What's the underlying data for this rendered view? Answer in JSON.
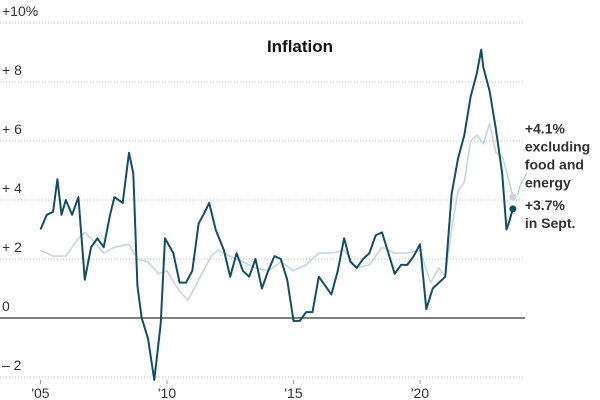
{
  "chart_data": {
    "type": "line",
    "title": "Inflation",
    "xlim": [
      2003.4,
      2024.15
    ],
    "ylim": [
      -2.5,
      10.5
    ],
    "xticks": [
      {
        "value": 2005,
        "label": "'05"
      },
      {
        "value": 2010,
        "label": "'10"
      },
      {
        "value": 2015,
        "label": "'15"
      },
      {
        "value": 2020,
        "label": "'20"
      }
    ],
    "yticks": [
      {
        "value": -2,
        "label": "– 2"
      },
      0,
      {
        "value": 2,
        "label": "+ 2"
      },
      {
        "value": 4,
        "label": "+ 4"
      },
      {
        "value": 6,
        "label": "+ 6"
      },
      {
        "value": 8,
        "label": "+ 8"
      },
      {
        "value": 10,
        "label": "+10%"
      }
    ],
    "grid": true,
    "series": [
      {
        "name": "excluding food and energy",
        "color": "#c5d4e6",
        "label_color": "#a9bfd9",
        "x": [
          2005.0,
          2005.5,
          2006.0,
          2006.5,
          2006.75,
          2007.0,
          2007.5,
          2007.92,
          2008.5,
          2008.83,
          2009.25,
          2009.67,
          2010.0,
          2010.5,
          2010.83,
          2011.25,
          2011.75,
          2012.0,
          2012.5,
          2013.0,
          2013.5,
          2014.0,
          2014.5,
          2015.0,
          2015.5,
          2016.0,
          2016.5,
          2017.0,
          2017.5,
          2018.0,
          2018.5,
          2019.0,
          2019.5,
          2020.0,
          2020.42,
          2020.75,
          2021.0,
          2021.25,
          2021.5,
          2021.75,
          2022.0,
          2022.25,
          2022.5,
          2022.75,
          2023.0,
          2023.25,
          2023.5,
          2023.67
        ],
        "values": [
          2.3,
          2.1,
          2.1,
          2.7,
          2.9,
          2.7,
          2.2,
          2.4,
          2.5,
          2.0,
          1.9,
          1.5,
          1.6,
          0.9,
          0.6,
          1.3,
          2.1,
          2.3,
          2.1,
          1.9,
          1.7,
          1.6,
          1.9,
          1.6,
          1.8,
          2.2,
          2.2,
          2.3,
          1.7,
          1.8,
          2.4,
          2.2,
          2.2,
          2.3,
          1.2,
          1.7,
          1.4,
          3.0,
          4.3,
          4.6,
          6.0,
          6.2,
          5.9,
          6.6,
          5.6,
          5.5,
          4.7,
          4.1
        ],
        "annotation": [
          "+4.1%",
          "excluding",
          "food and",
          "energy"
        ]
      },
      {
        "name": "in Sept.",
        "color": "#134e63",
        "label_color": "#111111",
        "x": [
          2005.0,
          2005.25,
          2005.5,
          2005.67,
          2005.83,
          2006.0,
          2006.25,
          2006.5,
          2006.75,
          2007.0,
          2007.25,
          2007.5,
          2007.75,
          2007.92,
          2008.25,
          2008.5,
          2008.67,
          2008.83,
          2009.0,
          2009.25,
          2009.5,
          2009.75,
          2009.92,
          2010.25,
          2010.5,
          2010.75,
          2011.0,
          2011.25,
          2011.5,
          2011.67,
          2011.92,
          2012.25,
          2012.5,
          2012.75,
          2013.0,
          2013.25,
          2013.5,
          2013.75,
          2014.0,
          2014.25,
          2014.5,
          2014.75,
          2015.0,
          2015.25,
          2015.5,
          2015.75,
          2016.0,
          2016.25,
          2016.5,
          2016.75,
          2017.0,
          2017.25,
          2017.5,
          2017.75,
          2018.0,
          2018.25,
          2018.5,
          2018.75,
          2019.0,
          2019.25,
          2019.5,
          2019.75,
          2020.0,
          2020.25,
          2020.5,
          2020.75,
          2021.0,
          2021.25,
          2021.5,
          2021.75,
          2022.0,
          2022.25,
          2022.42,
          2022.5,
          2022.75,
          2023.0,
          2023.25,
          2023.42,
          2023.5,
          2023.67
        ],
        "values": [
          3.0,
          3.5,
          3.6,
          4.7,
          3.5,
          4.0,
          3.5,
          4.1,
          1.3,
          2.4,
          2.7,
          2.4,
          3.5,
          4.1,
          3.9,
          5.6,
          4.9,
          1.1,
          0.0,
          -0.7,
          -2.1,
          -0.2,
          2.7,
          2.2,
          1.2,
          1.2,
          1.6,
          3.2,
          3.6,
          3.9,
          3.0,
          2.3,
          1.4,
          2.2,
          1.6,
          1.4,
          2.0,
          1.0,
          1.6,
          2.1,
          2.0,
          1.3,
          -0.1,
          -0.1,
          0.2,
          0.2,
          1.4,
          1.1,
          0.8,
          1.6,
          2.7,
          1.9,
          1.7,
          2.0,
          2.2,
          2.8,
          2.9,
          2.2,
          1.5,
          1.8,
          1.8,
          2.1,
          2.5,
          0.3,
          1.0,
          1.2,
          1.4,
          4.2,
          5.4,
          6.2,
          7.5,
          8.3,
          9.1,
          8.5,
          7.7,
          6.4,
          4.9,
          3.0,
          3.2,
          3.7
        ],
        "annotation": [
          "+3.7%",
          "in Sept."
        ]
      }
    ]
  }
}
